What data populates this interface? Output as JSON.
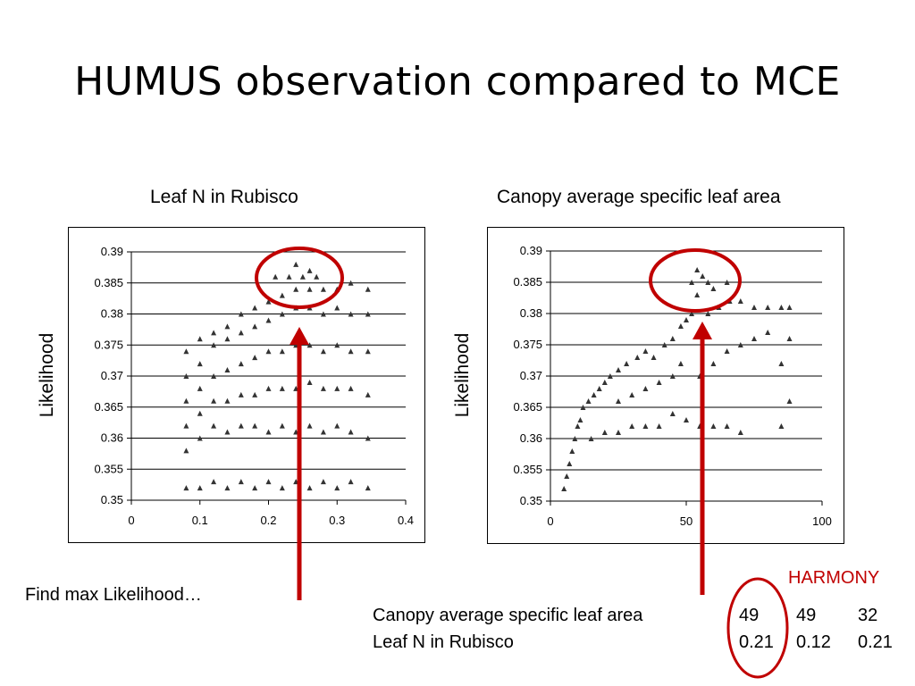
{
  "slide": {
    "title": "HUMUS observation compared to MCE"
  },
  "left_chart": {
    "heading": "Leaf N in Rubisco",
    "ylabel": "Likelihood"
  },
  "right_chart": {
    "heading": "Canopy average specific leaf area",
    "ylabel": "Likelihood"
  },
  "note": "Find max Likelihood…",
  "harmony_label": "HARMONY",
  "table": {
    "rows": [
      {
        "label": "Canopy average specific leaf area",
        "values": [
          "49",
          "49",
          "32"
        ]
      },
      {
        "label": "Leaf N in Rubisco",
        "values": [
          "0.21",
          "0.12",
          "0.21"
        ]
      }
    ]
  },
  "colors": {
    "marker": "#333333",
    "highlight": "#c00000",
    "gridline": "#000000"
  },
  "chart_data": [
    {
      "type": "scatter",
      "title": "Leaf N in Rubisco",
      "xlabel": "",
      "ylabel": "Likelihood",
      "xlim": [
        0,
        0.4
      ],
      "ylim": [
        0.35,
        0.39
      ],
      "x_ticks": [
        "0",
        "0.1",
        "0.2",
        "0.3",
        "0.4"
      ],
      "y_ticks": [
        "0.35",
        "0.355",
        "0.36",
        "0.365",
        "0.37",
        "0.375",
        "0.38",
        "0.385",
        "0.39"
      ],
      "grid": "horizontal",
      "marker": "triangle",
      "series": [
        {
          "points": [
            [
              0.08,
              0.352
            ],
            [
              0.08,
              0.358
            ],
            [
              0.08,
              0.362
            ],
            [
              0.08,
              0.366
            ],
            [
              0.08,
              0.37
            ],
            [
              0.08,
              0.374
            ],
            [
              0.1,
              0.352
            ],
            [
              0.1,
              0.36
            ],
            [
              0.1,
              0.364
            ],
            [
              0.1,
              0.368
            ],
            [
              0.1,
              0.372
            ],
            [
              0.1,
              0.376
            ],
            [
              0.12,
              0.353
            ],
            [
              0.12,
              0.362
            ],
            [
              0.12,
              0.366
            ],
            [
              0.12,
              0.37
            ],
            [
              0.12,
              0.375
            ],
            [
              0.12,
              0.377
            ],
            [
              0.14,
              0.352
            ],
            [
              0.14,
              0.361
            ],
            [
              0.14,
              0.366
            ],
            [
              0.14,
              0.371
            ],
            [
              0.14,
              0.376
            ],
            [
              0.14,
              0.378
            ],
            [
              0.16,
              0.353
            ],
            [
              0.16,
              0.362
            ],
            [
              0.16,
              0.367
            ],
            [
              0.16,
              0.372
            ],
            [
              0.16,
              0.377
            ],
            [
              0.16,
              0.38
            ],
            [
              0.18,
              0.352
            ],
            [
              0.18,
              0.362
            ],
            [
              0.18,
              0.367
            ],
            [
              0.18,
              0.373
            ],
            [
              0.18,
              0.378
            ],
            [
              0.18,
              0.381
            ],
            [
              0.2,
              0.353
            ],
            [
              0.2,
              0.361
            ],
            [
              0.2,
              0.368
            ],
            [
              0.2,
              0.374
            ],
            [
              0.2,
              0.379
            ],
            [
              0.2,
              0.382
            ],
            [
              0.22,
              0.352
            ],
            [
              0.22,
              0.362
            ],
            [
              0.22,
              0.368
            ],
            [
              0.22,
              0.374
            ],
            [
              0.22,
              0.38
            ],
            [
              0.22,
              0.383
            ],
            [
              0.24,
              0.353
            ],
            [
              0.24,
              0.361
            ],
            [
              0.24,
              0.368
            ],
            [
              0.24,
              0.375
            ],
            [
              0.24,
              0.381
            ],
            [
              0.24,
              0.384
            ],
            [
              0.26,
              0.352
            ],
            [
              0.26,
              0.362
            ],
            [
              0.26,
              0.369
            ],
            [
              0.26,
              0.375
            ],
            [
              0.26,
              0.381
            ],
            [
              0.26,
              0.384
            ],
            [
              0.28,
              0.353
            ],
            [
              0.28,
              0.361
            ],
            [
              0.28,
              0.368
            ],
            [
              0.28,
              0.374
            ],
            [
              0.28,
              0.38
            ],
            [
              0.28,
              0.384
            ],
            [
              0.3,
              0.352
            ],
            [
              0.3,
              0.362
            ],
            [
              0.3,
              0.368
            ],
            [
              0.3,
              0.375
            ],
            [
              0.3,
              0.381
            ],
            [
              0.3,
              0.384
            ],
            [
              0.32,
              0.353
            ],
            [
              0.32,
              0.361
            ],
            [
              0.32,
              0.368
            ],
            [
              0.32,
              0.374
            ],
            [
              0.32,
              0.38
            ],
            [
              0.32,
              0.385
            ],
            [
              0.345,
              0.352
            ],
            [
              0.345,
              0.36
            ],
            [
              0.345,
              0.367
            ],
            [
              0.345,
              0.374
            ],
            [
              0.345,
              0.38
            ],
            [
              0.345,
              0.384
            ],
            [
              0.21,
              0.386
            ],
            [
              0.23,
              0.386
            ],
            [
              0.25,
              0.386
            ],
            [
              0.27,
              0.386
            ],
            [
              0.24,
              0.388
            ],
            [
              0.26,
              0.387
            ]
          ]
        }
      ]
    },
    {
      "type": "scatter",
      "title": "Canopy average specific leaf area",
      "xlabel": "",
      "ylabel": "Likelihood",
      "xlim": [
        0,
        100
      ],
      "ylim": [
        0.35,
        0.39
      ],
      "x_ticks": [
        "0",
        "50",
        "100"
      ],
      "y_ticks": [
        "0.35",
        "0.355",
        "0.36",
        "0.365",
        "0.37",
        "0.375",
        "0.38",
        "0.385",
        "0.39"
      ],
      "grid": "horizontal",
      "marker": "triangle",
      "series": [
        {
          "points": [
            [
              5,
              0.352
            ],
            [
              6,
              0.354
            ],
            [
              7,
              0.356
            ],
            [
              8,
              0.358
            ],
            [
              9,
              0.36
            ],
            [
              10,
              0.362
            ],
            [
              11,
              0.363
            ],
            [
              12,
              0.365
            ],
            [
              14,
              0.366
            ],
            [
              16,
              0.367
            ],
            [
              18,
              0.368
            ],
            [
              20,
              0.369
            ],
            [
              15,
              0.36
            ],
            [
              20,
              0.361
            ],
            [
              25,
              0.361
            ],
            [
              30,
              0.362
            ],
            [
              35,
              0.362
            ],
            [
              40,
              0.362
            ],
            [
              22,
              0.37
            ],
            [
              25,
              0.371
            ],
            [
              28,
              0.372
            ],
            [
              32,
              0.373
            ],
            [
              35,
              0.374
            ],
            [
              38,
              0.373
            ],
            [
              25,
              0.366
            ],
            [
              30,
              0.367
            ],
            [
              35,
              0.368
            ],
            [
              40,
              0.369
            ],
            [
              45,
              0.37
            ],
            [
              48,
              0.372
            ],
            [
              42,
              0.375
            ],
            [
              45,
              0.376
            ],
            [
              48,
              0.378
            ],
            [
              50,
              0.379
            ],
            [
              52,
              0.38
            ],
            [
              54,
              0.383
            ],
            [
              45,
              0.364
            ],
            [
              50,
              0.363
            ],
            [
              55,
              0.362
            ],
            [
              60,
              0.362
            ],
            [
              65,
              0.362
            ],
            [
              70,
              0.361
            ],
            [
              55,
              0.37
            ],
            [
              60,
              0.372
            ],
            [
              65,
              0.374
            ],
            [
              70,
              0.375
            ],
            [
              75,
              0.376
            ],
            [
              80,
              0.377
            ],
            [
              58,
              0.38
            ],
            [
              62,
              0.381
            ],
            [
              66,
              0.382
            ],
            [
              70,
              0.382
            ],
            [
              75,
              0.381
            ],
            [
              80,
              0.381
            ],
            [
              85,
              0.381
            ],
            [
              88,
              0.381
            ],
            [
              85,
              0.372
            ],
            [
              88,
              0.366
            ],
            [
              85,
              0.362
            ],
            [
              88,
              0.376
            ],
            [
              52,
              0.385
            ],
            [
              54,
              0.387
            ],
            [
              56,
              0.386
            ],
            [
              58,
              0.385
            ],
            [
              60,
              0.384
            ],
            [
              65,
              0.385
            ]
          ]
        }
      ]
    }
  ]
}
